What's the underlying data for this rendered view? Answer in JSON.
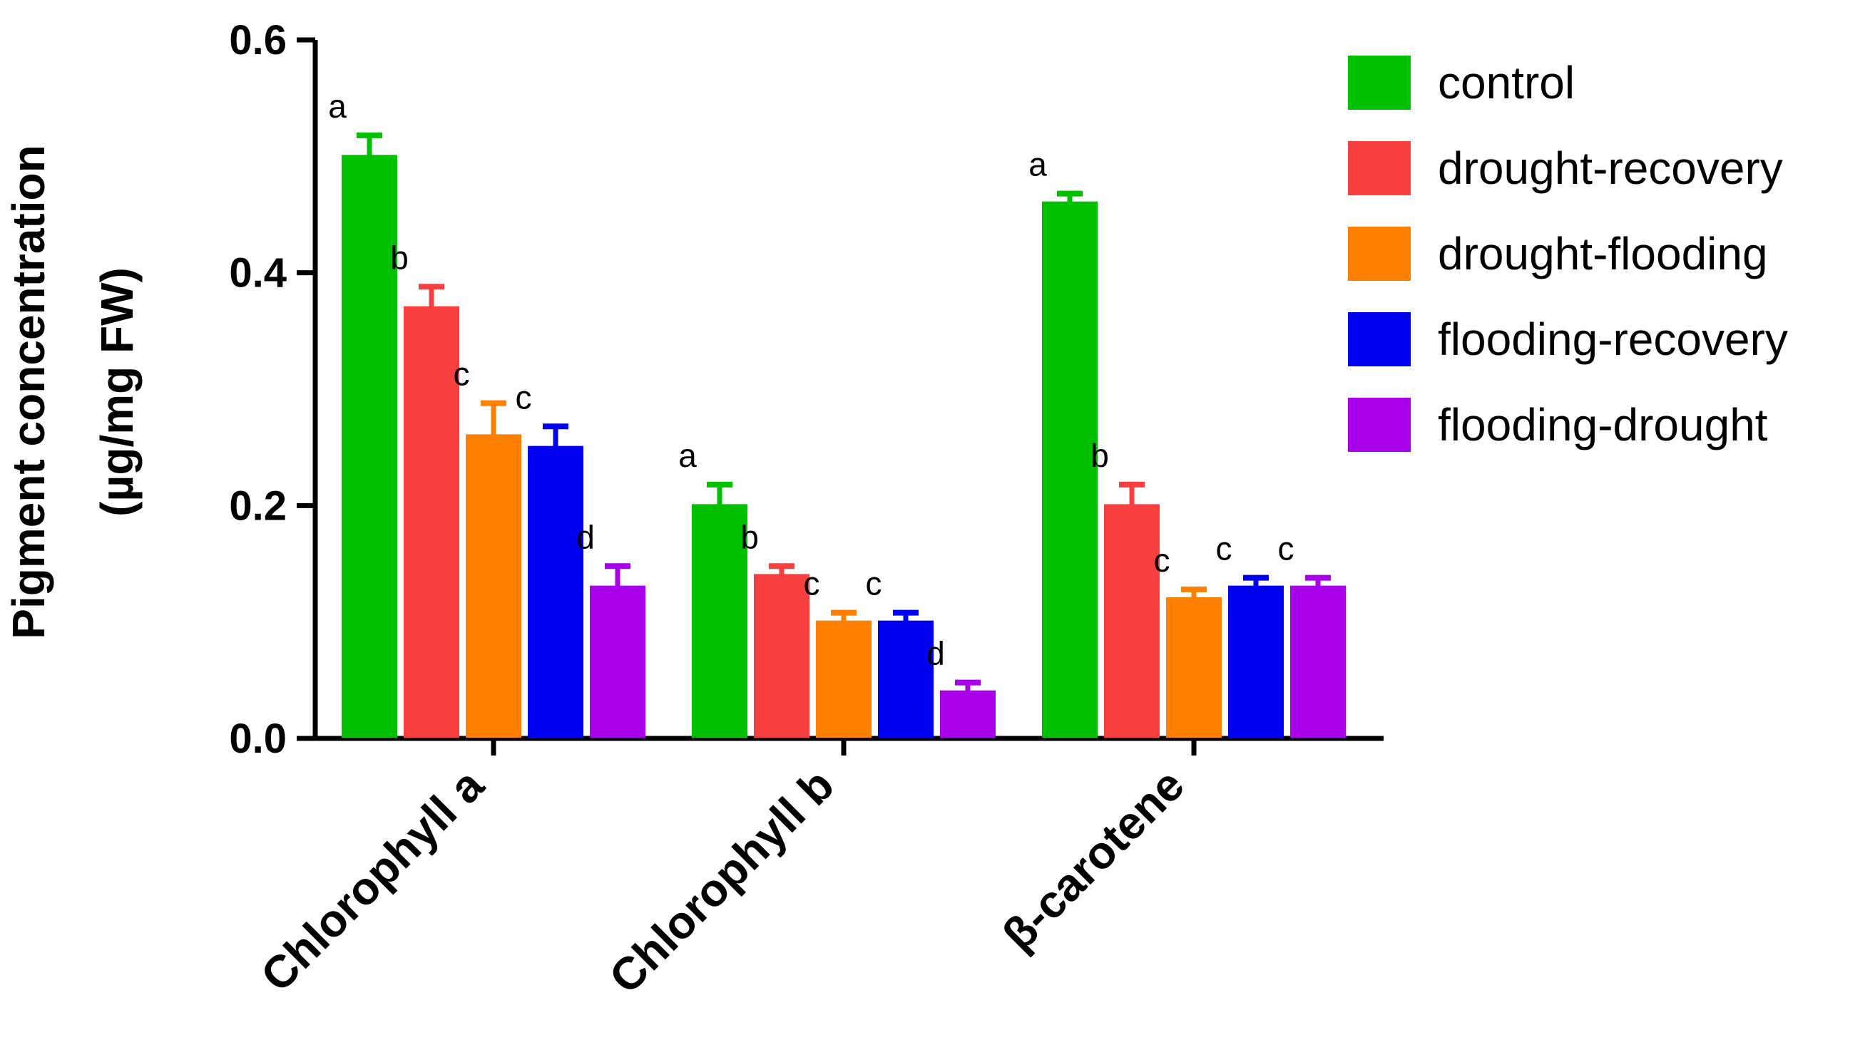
{
  "chart_data": {
    "type": "bar",
    "title": "",
    "xlabel": "",
    "ylabel_line1": "Pigment concentration",
    "ylabel_line2": "(µg/mg FW)",
    "ylim": [
      0,
      0.6
    ],
    "yticks": [
      "0.0",
      "0.2",
      "0.4",
      "0.6"
    ],
    "ytick_values": [
      0,
      0.2,
      0.4,
      0.6
    ],
    "categories": [
      "Chlorophyll a",
      "Chlorophyll b",
      "β-carotene"
    ],
    "legend_position": "top-right",
    "series": [
      {
        "name": "control",
        "color": "#00c000",
        "values": [
          0.5,
          0.2,
          0.46
        ],
        "errors": [
          0.018,
          0.018,
          0.008
        ],
        "letters": [
          "a",
          "a",
          "a"
        ]
      },
      {
        "name": "drought-recovery",
        "color": "#f94040",
        "values": [
          0.37,
          0.14,
          0.2
        ],
        "errors": [
          0.018,
          0.008,
          0.018
        ],
        "letters": [
          "b",
          "b",
          "b"
        ]
      },
      {
        "name": "drought-flooding",
        "color": "#ff7f00",
        "values": [
          0.26,
          0.1,
          0.12
        ],
        "errors": [
          0.028,
          0.008,
          0.008
        ],
        "letters": [
          "c",
          "c",
          "c"
        ]
      },
      {
        "name": "flooding-recovery",
        "color": "#0000f0",
        "values": [
          0.25,
          0.1,
          0.13
        ],
        "errors": [
          0.018,
          0.008,
          0.008
        ],
        "letters": [
          "c",
          "c",
          "c"
        ]
      },
      {
        "name": "flooding-drought",
        "color": "#a800e8",
        "values": [
          0.13,
          0.04,
          0.13
        ],
        "errors": [
          0.018,
          0.008,
          0.008
        ],
        "letters": [
          "d",
          "d",
          "c"
        ]
      }
    ]
  }
}
